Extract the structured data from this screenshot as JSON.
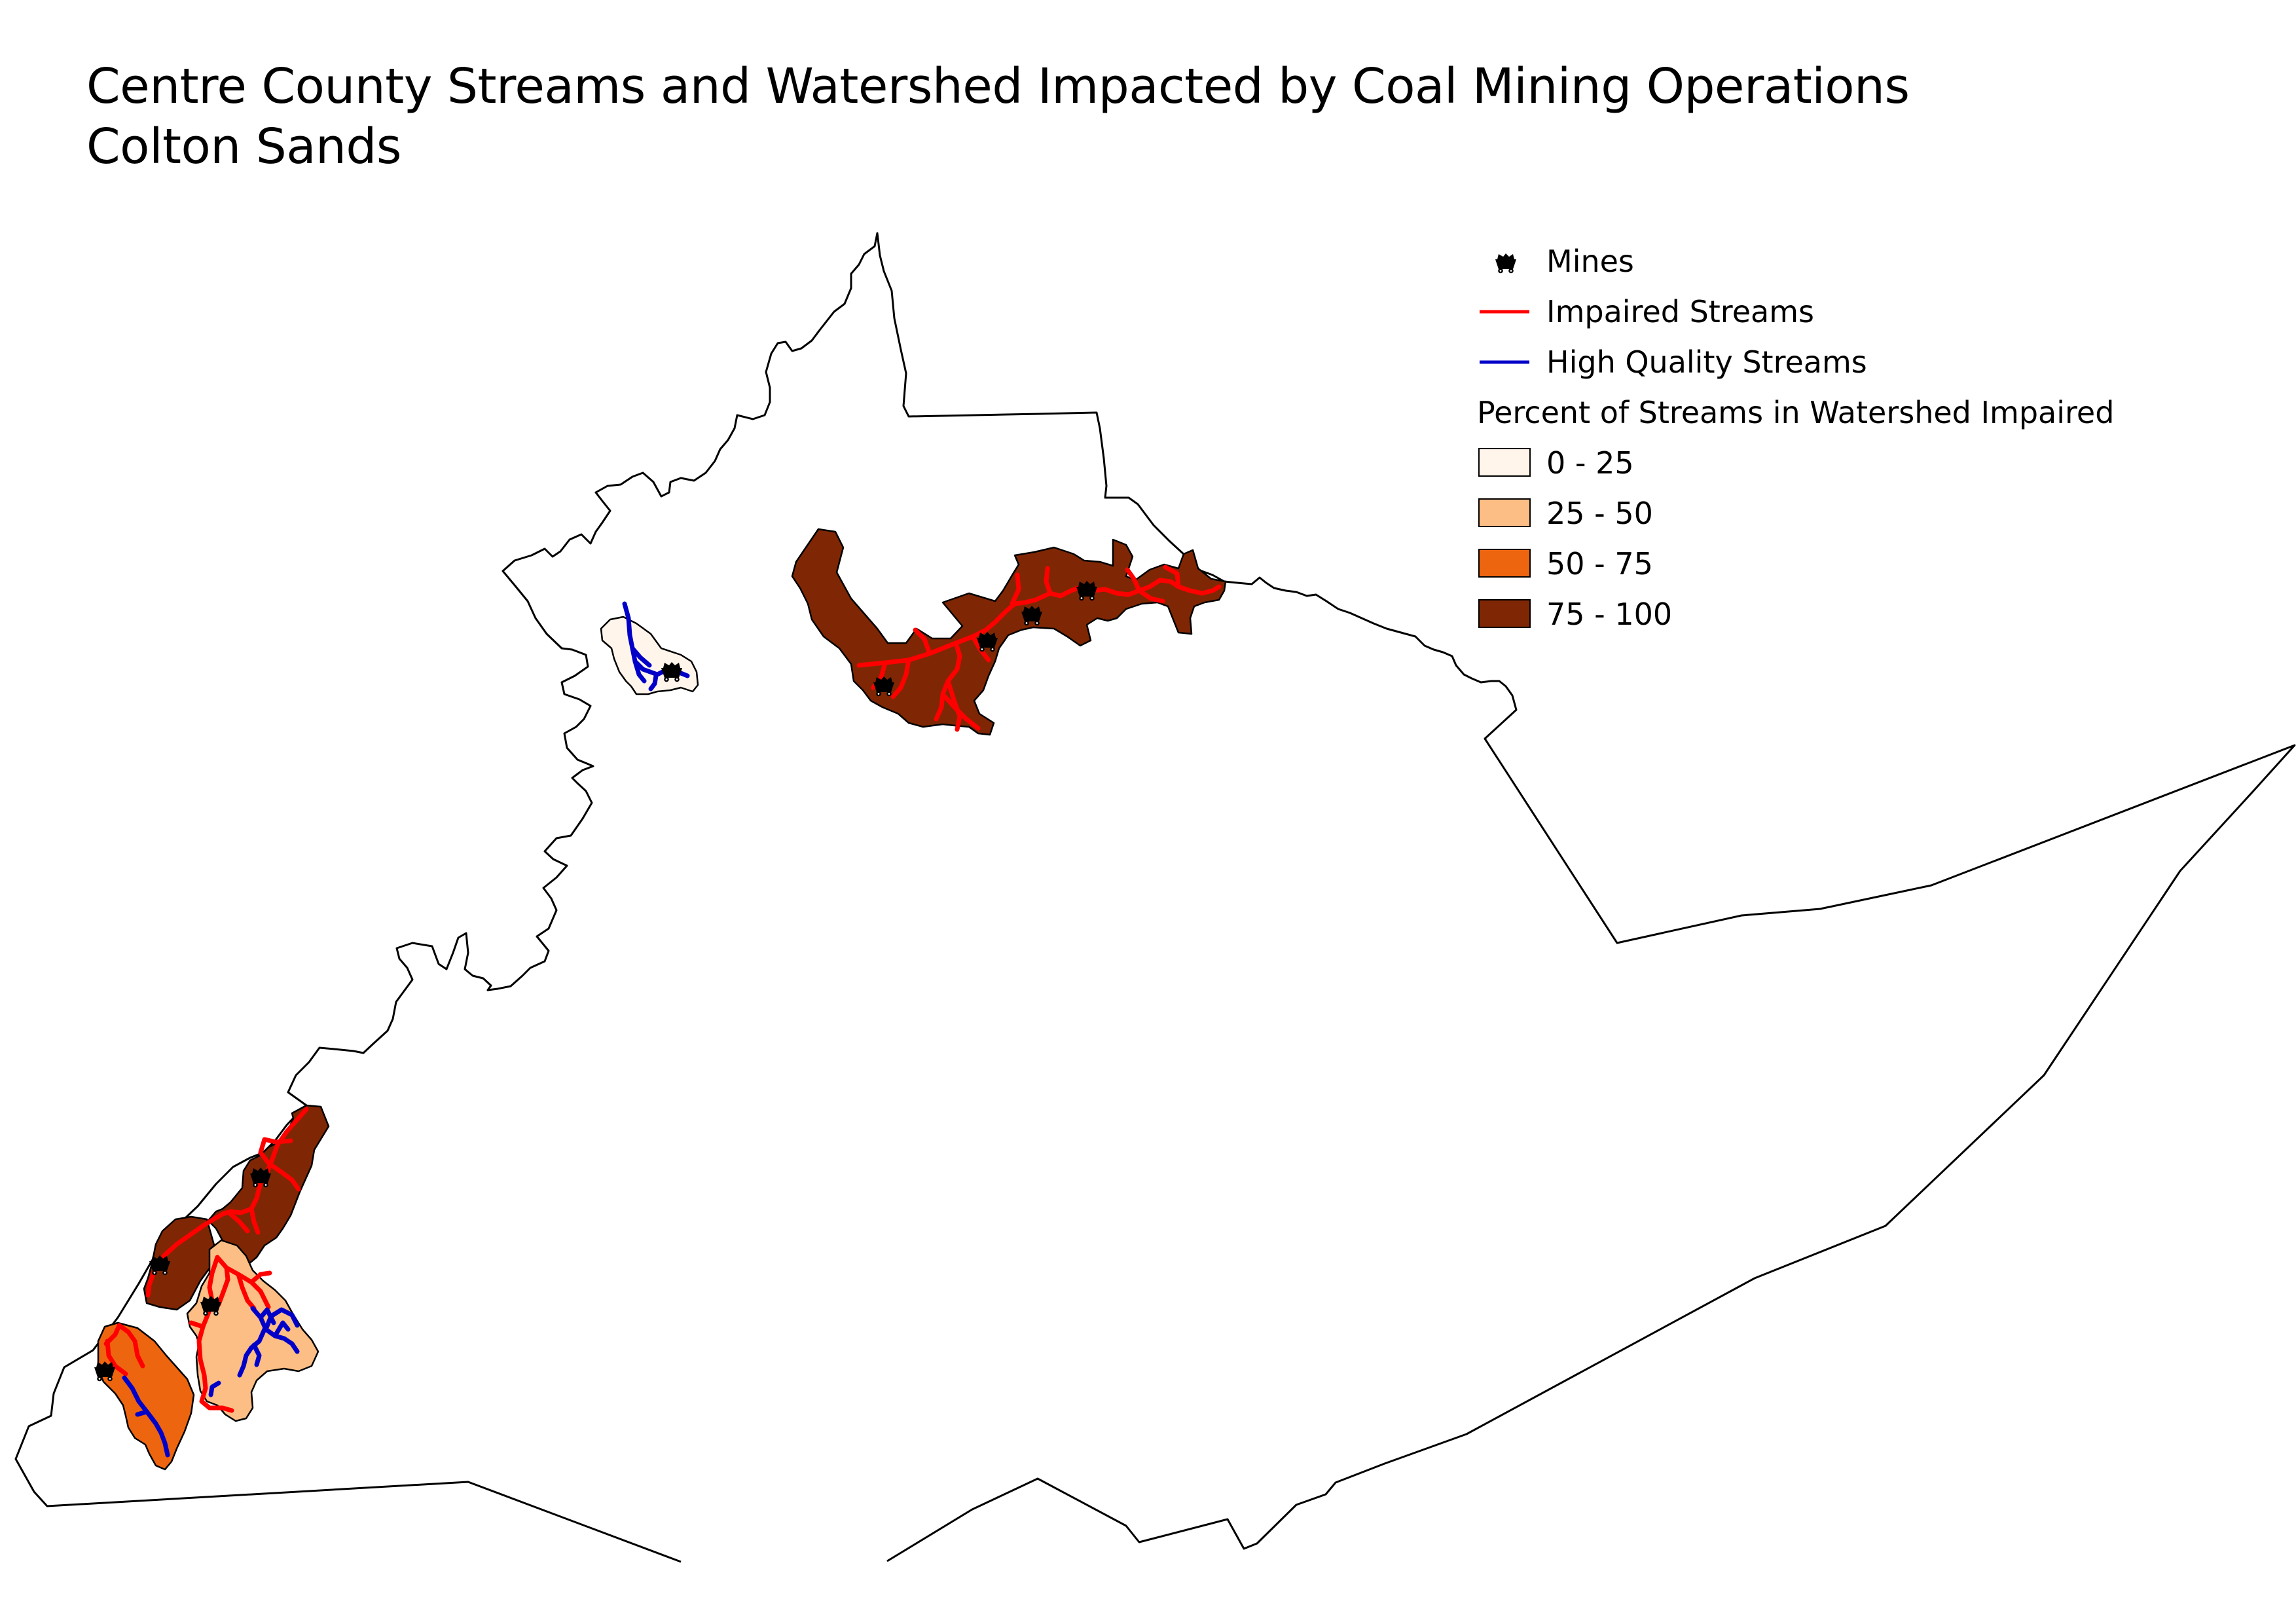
{
  "map": {
    "title": "Centre County Streams and Watershed Impacted by Coal Mining Operations",
    "author": "Colton Sands",
    "colors": {
      "county_outline": "#000000",
      "impaired_stream": "#ff0000",
      "high_quality_stream": "#0000c8",
      "mine_symbol": "#000000",
      "class_0_25": "#fff5eb",
      "class_25_50": "#fdbe85",
      "class_50_75": "#ee6510",
      "class_75_100": "#7f2704"
    },
    "legend": {
      "mines_label": "Mines",
      "mines_icon": "mine-cart-icon",
      "impaired_label": "Impaired Streams",
      "high_quality_label": "High Quality Streams",
      "choropleth_title": "Percent of Streams in Watershed Impaired",
      "classes": [
        {
          "label": "0 - 25",
          "color": "#fff5eb"
        },
        {
          "label": "25 - 50",
          "color": "#fdbe85"
        },
        {
          "label": "50 - 75",
          "color": "#ee6510"
        },
        {
          "label": "75 - 100",
          "color": "#7f2704"
        }
      ]
    }
  }
}
